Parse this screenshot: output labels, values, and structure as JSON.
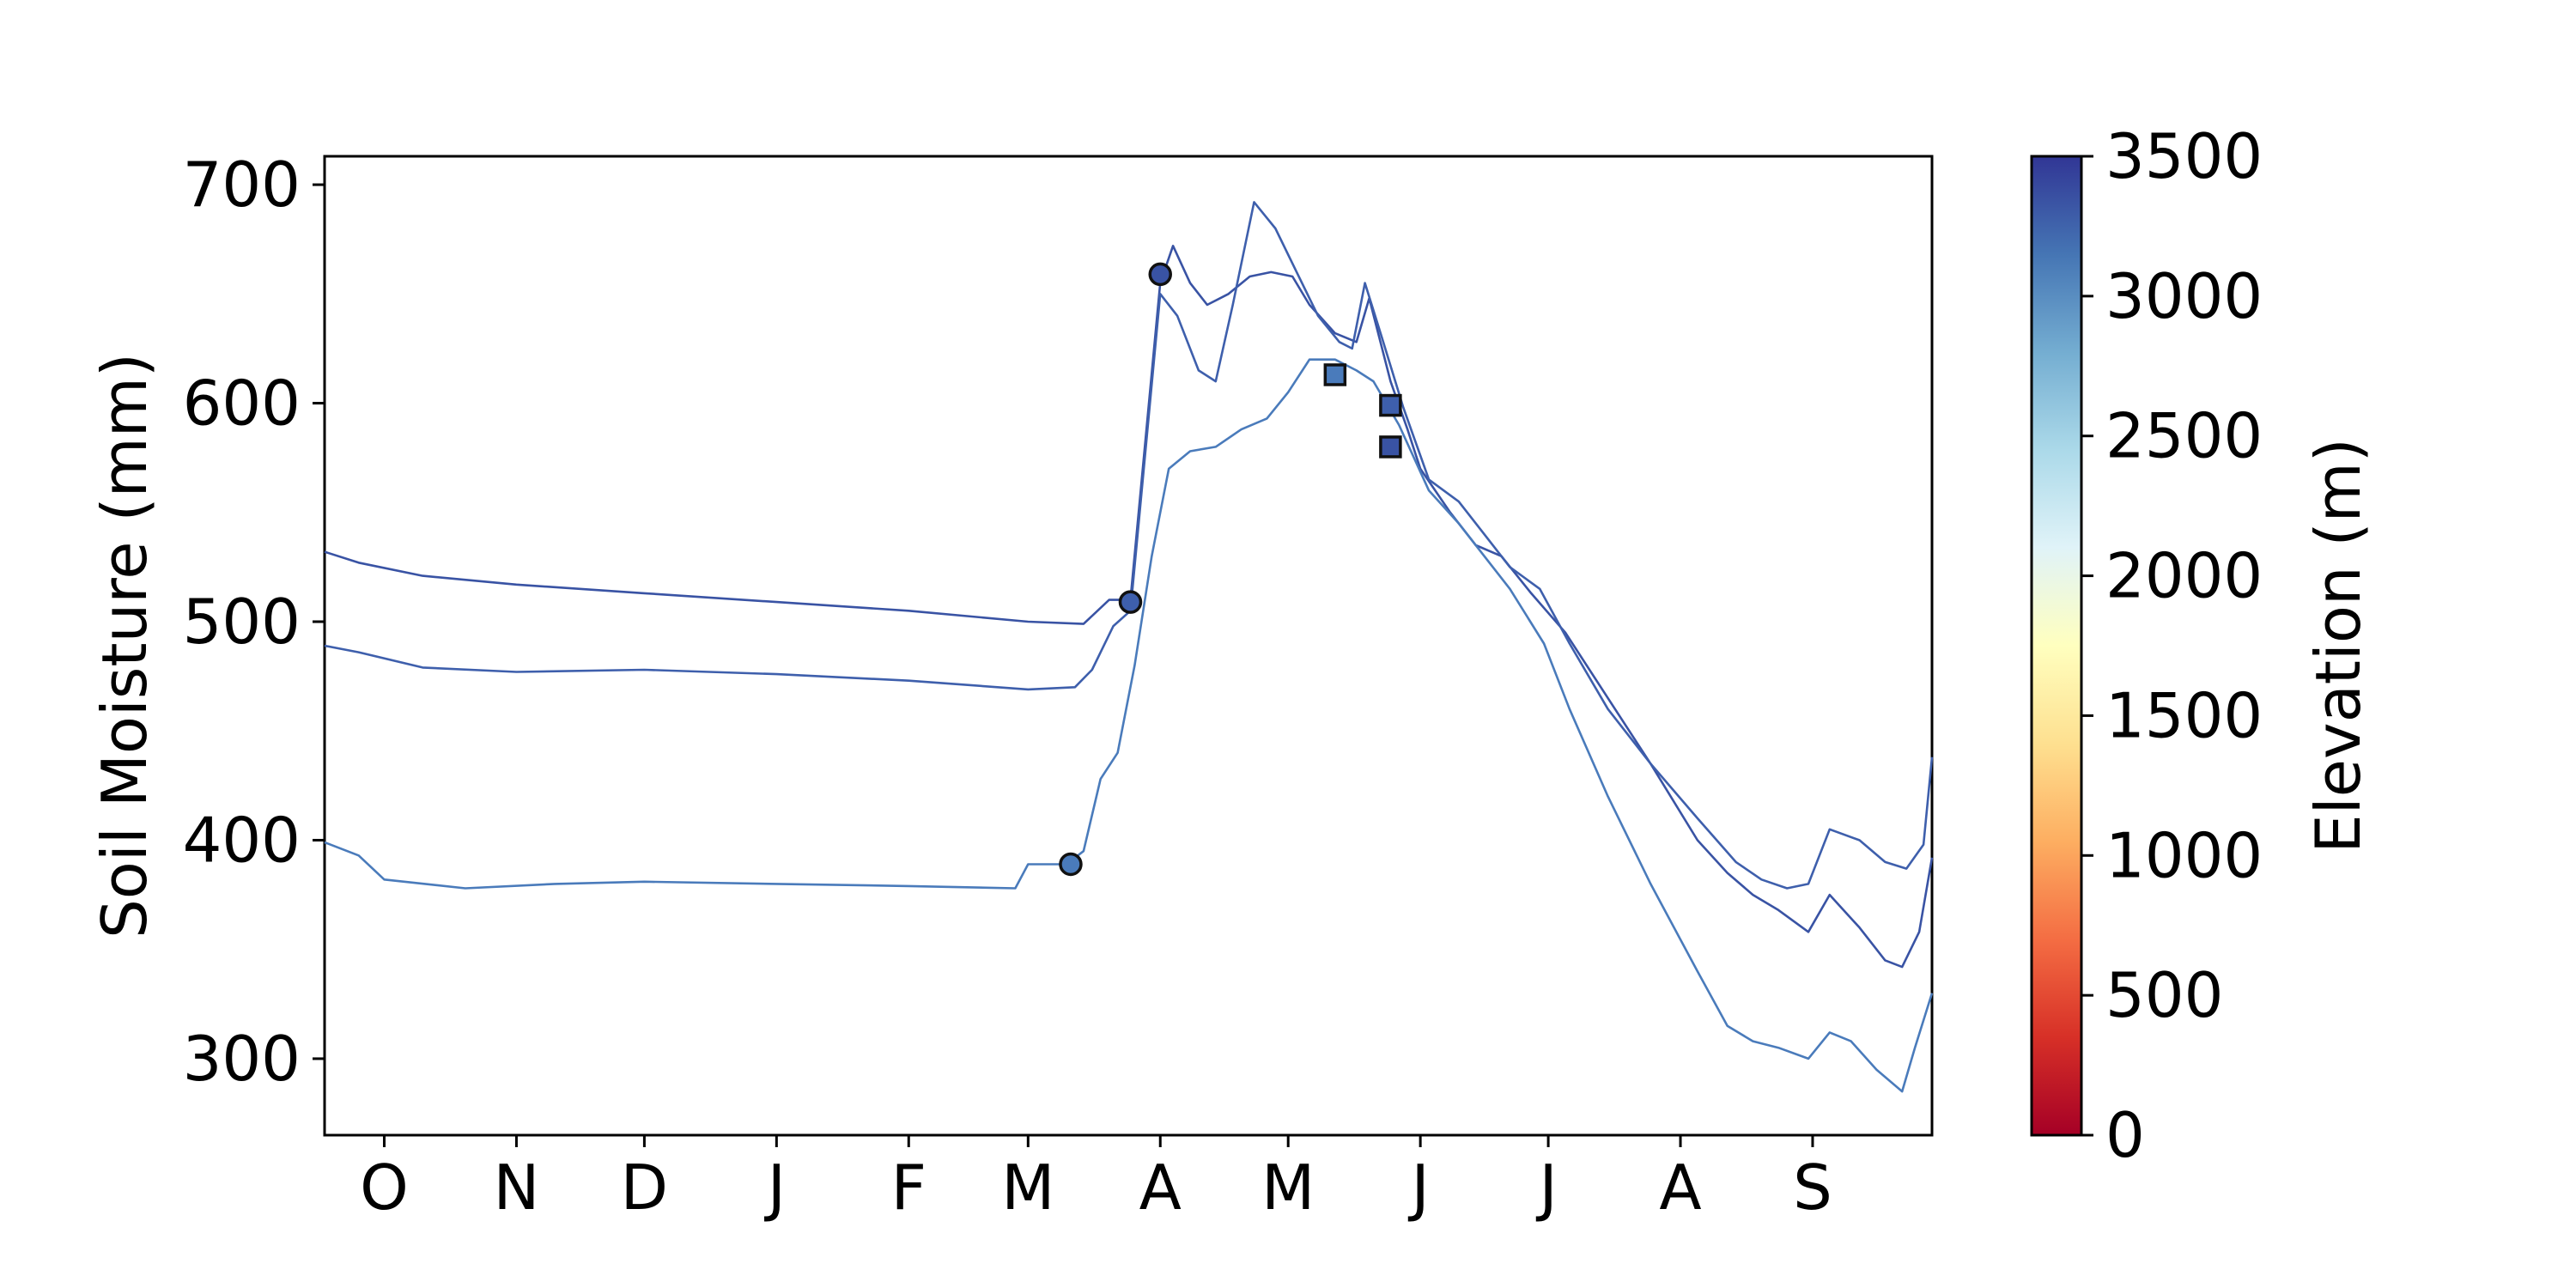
{
  "chart_data": {
    "type": "line",
    "title": "",
    "xlabel": "",
    "ylabel": "Soil Moisture (mm)",
    "x_tick_labels": [
      "O",
      "N",
      "D",
      "J",
      "F",
      "M",
      "A",
      "M",
      "J",
      "J",
      "A",
      "S"
    ],
    "xlim": [
      "Sep 17",
      "Sep 29"
    ],
    "ylim": [
      265,
      713
    ],
    "y_ticks": [
      300,
      400,
      500,
      600,
      700
    ],
    "grid": false,
    "line_color_scale": "elevation (RdYlBu)",
    "series": [
      {
        "elevation": 3300,
        "color": "#3953a4",
        "points": [
          [
            "Sep 17",
            532
          ],
          [
            "Sep 25",
            527
          ],
          [
            "Oct 10",
            521
          ],
          [
            "Nov 1",
            517
          ],
          [
            "Dec 1",
            513
          ],
          [
            "Jan 1",
            509
          ],
          [
            "Feb 1",
            505
          ],
          [
            "Mar 1",
            500
          ],
          [
            "Mar 14",
            499
          ],
          [
            "Mar 20",
            510
          ],
          [
            "Mar 25",
            510
          ],
          [
            "Apr 1",
            655
          ],
          [
            "Apr 4",
            672
          ],
          [
            "Apr 8",
            655
          ],
          [
            "Apr 12",
            645
          ],
          [
            "Apr 17",
            650
          ],
          [
            "Apr 22",
            658
          ],
          [
            "Apr 27",
            660
          ],
          [
            "May 2",
            658
          ],
          [
            "May 6",
            645
          ],
          [
            "May 12",
            632
          ],
          [
            "May 17",
            628
          ],
          [
            "May 20",
            648
          ],
          [
            "May 25",
            610
          ],
          [
            "May 29",
            588
          ],
          [
            "Jun 1",
            570
          ],
          [
            "Jun 8",
            550
          ],
          [
            "Jun 14",
            535
          ],
          [
            "Jun 20",
            530
          ],
          [
            "Jun 27",
            513
          ],
          [
            "Jul 5",
            495
          ],
          [
            "Jul 15",
            465
          ],
          [
            "Jul 25",
            435
          ],
          [
            "Aug 5",
            400
          ],
          [
            "Aug 12",
            385
          ],
          [
            "Aug 18",
            375
          ],
          [
            "Aug 24",
            368
          ],
          [
            "Aug 31",
            358
          ],
          [
            "Sep 5",
            375
          ],
          [
            "Sep 12",
            360
          ],
          [
            "Sep 18",
            345
          ],
          [
            "Sep 22",
            342
          ],
          [
            "Sep 26",
            358
          ],
          [
            "Sep 29",
            392
          ]
        ]
      },
      {
        "elevation": 3200,
        "color": "#3e5fac",
        "points": [
          [
            "Sep 17",
            489
          ],
          [
            "Sep 25",
            486
          ],
          [
            "Oct 10",
            479
          ],
          [
            "Nov 1",
            477
          ],
          [
            "Dec 1",
            478
          ],
          [
            "Jan 1",
            476
          ],
          [
            "Feb 1",
            473
          ],
          [
            "Mar 1",
            469
          ],
          [
            "Mar 12",
            470
          ],
          [
            "Mar 16",
            478
          ],
          [
            "Mar 21",
            498
          ],
          [
            "Mar 25",
            505
          ],
          [
            "Apr 1",
            650
          ],
          [
            "Apr 5",
            640
          ],
          [
            "Apr 10",
            615
          ],
          [
            "Apr 14",
            610
          ],
          [
            "Apr 18",
            645
          ],
          [
            "Apr 23",
            692
          ],
          [
            "Apr 28",
            680
          ],
          [
            "May 3",
            660
          ],
          [
            "May 8",
            640
          ],
          [
            "May 13",
            628
          ],
          [
            "May 16",
            625
          ],
          [
            "May 19",
            655
          ],
          [
            "May 23",
            630
          ],
          [
            "May 28",
            598
          ],
          [
            "Jun 3",
            565
          ],
          [
            "Jun 10",
            555
          ],
          [
            "Jun 16",
            540
          ],
          [
            "Jun 22",
            525
          ],
          [
            "Jun 29",
            515
          ],
          [
            "Jul 6",
            490
          ],
          [
            "Jul 15",
            460
          ],
          [
            "Jul 25",
            435
          ],
          [
            "Aug 5",
            410
          ],
          [
            "Aug 14",
            390
          ],
          [
            "Aug 20",
            382
          ],
          [
            "Aug 26",
            378
          ],
          [
            "Aug 31",
            380
          ],
          [
            "Sep 5",
            405
          ],
          [
            "Sep 12",
            400
          ],
          [
            "Sep 18",
            390
          ],
          [
            "Sep 23",
            387
          ],
          [
            "Sep 27",
            398
          ],
          [
            "Sep 29",
            438
          ]
        ]
      },
      {
        "elevation": 2900,
        "color": "#4a7bbb",
        "points": [
          [
            "Sep 17",
            399
          ],
          [
            "Sep 25",
            393
          ],
          [
            "Oct 1",
            382
          ],
          [
            "Oct 20",
            378
          ],
          [
            "Nov 10",
            380
          ],
          [
            "Dec 1",
            381
          ],
          [
            "Jan 1",
            380
          ],
          [
            "Feb 1",
            379
          ],
          [
            "Feb 26",
            378
          ],
          [
            "Mar 1",
            389
          ],
          [
            "Mar 10",
            389
          ],
          [
            "Mar 14",
            395
          ],
          [
            "Mar 18",
            428
          ],
          [
            "Mar 22",
            440
          ],
          [
            "Mar 26",
            480
          ],
          [
            "Mar 30",
            530
          ],
          [
            "Apr 3",
            570
          ],
          [
            "Apr 8",
            578
          ],
          [
            "Apr 14",
            580
          ],
          [
            "Apr 20",
            588
          ],
          [
            "Apr 26",
            593
          ],
          [
            "May 1",
            605
          ],
          [
            "May 6",
            620
          ],
          [
            "May 12",
            620
          ],
          [
            "May 17",
            615
          ],
          [
            "May 21",
            610
          ],
          [
            "May 27",
            590
          ],
          [
            "Jun 3",
            560
          ],
          [
            "Jun 10",
            545
          ],
          [
            "Jun 16",
            530
          ],
          [
            "Jun 22",
            515
          ],
          [
            "Jun 30",
            490
          ],
          [
            "Jul 6",
            460
          ],
          [
            "Jul 15",
            420
          ],
          [
            "Jul 25",
            380
          ],
          [
            "Aug 5",
            340
          ],
          [
            "Aug 12",
            315
          ],
          [
            "Aug 18",
            308
          ],
          [
            "Aug 24",
            305
          ],
          [
            "Aug 31",
            300
          ],
          [
            "Sep 5",
            312
          ],
          [
            "Sep 10",
            308
          ],
          [
            "Sep 16",
            295
          ],
          [
            "Sep 22",
            285
          ],
          [
            "Sep 25",
            305
          ],
          [
            "Sep 29",
            330
          ]
        ]
      }
    ],
    "circle_markers": [
      {
        "date": "Mar 11",
        "value": 389,
        "color": "#4a7bbb"
      },
      {
        "date": "Mar 25",
        "value": 509,
        "color": "#3e5fac"
      },
      {
        "date": "Apr 1",
        "value": 659,
        "color": "#3953a4"
      }
    ],
    "square_markers": [
      {
        "date": "May 12",
        "value": 613,
        "color": "#4a7bbb"
      },
      {
        "date": "May 25",
        "value": 599,
        "color": "#3e5fac"
      },
      {
        "date": "May 25",
        "value": 580,
        "color": "#3953a4"
      }
    ],
    "colorbar": {
      "label": "Elevation (m)",
      "range": [
        0,
        3500
      ],
      "ticks": [
        "0",
        "500",
        "1000",
        "1500",
        "2000",
        "2500",
        "3000",
        "3500"
      ],
      "colormap_stops": [
        "#a50026",
        "#d73027",
        "#f46d43",
        "#fdae61",
        "#fee090",
        "#ffffbf",
        "#e0f3f8",
        "#abd9e9",
        "#74add1",
        "#4575b4",
        "#313695"
      ]
    }
  }
}
